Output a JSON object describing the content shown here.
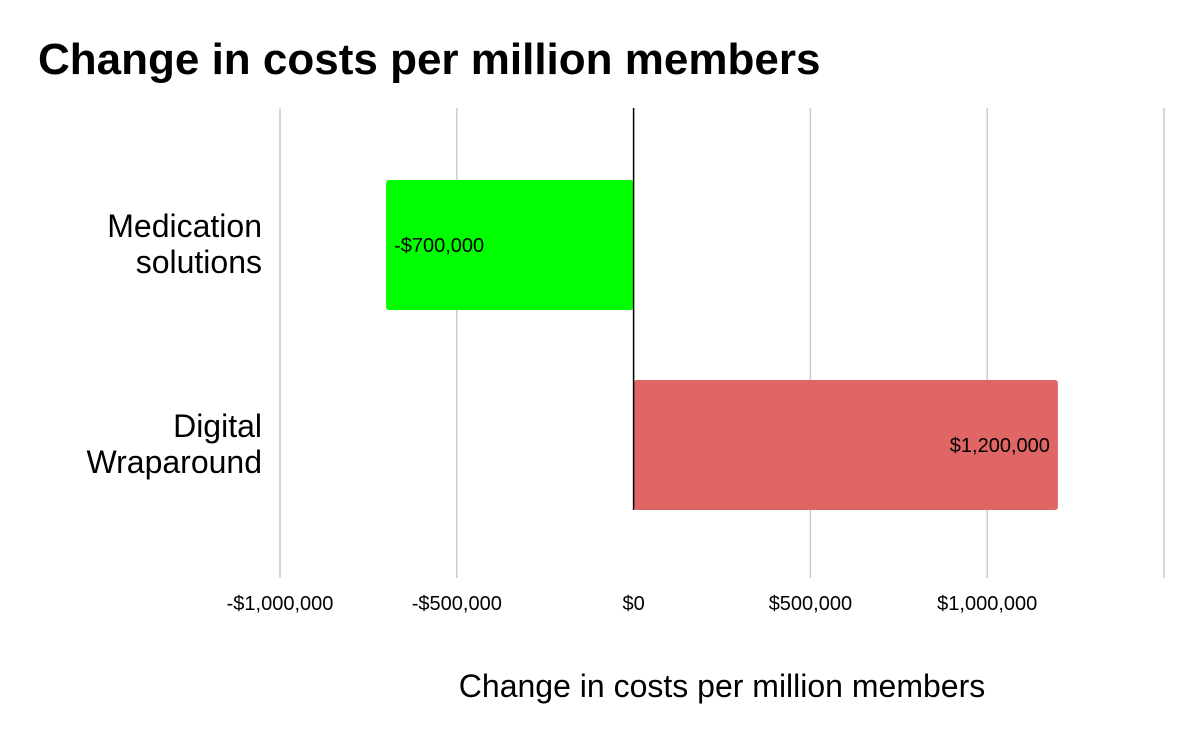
{
  "chart_data": {
    "type": "bar",
    "orientation": "horizontal",
    "title": "Change in costs per million members",
    "xlabel": "Change in costs per million members",
    "ylabel": "",
    "categories": [
      [
        "Medication",
        "solutions"
      ],
      [
        "Digital",
        "Wraparound"
      ]
    ],
    "values": [
      -700000,
      1200000
    ],
    "value_labels": [
      "-$700,000",
      "$1,200,000"
    ],
    "bar_colors": [
      "#00ff00",
      "#e06666"
    ],
    "xlim": [
      -1000000,
      1500000
    ],
    "x_ticks": [
      -1000000,
      -500000,
      0,
      500000,
      1000000
    ],
    "x_tick_labels": [
      "-$1,000,000",
      "-$500,000",
      "$0",
      "$500,000",
      "$1,000,000"
    ],
    "grid": true,
    "legend": "none"
  }
}
